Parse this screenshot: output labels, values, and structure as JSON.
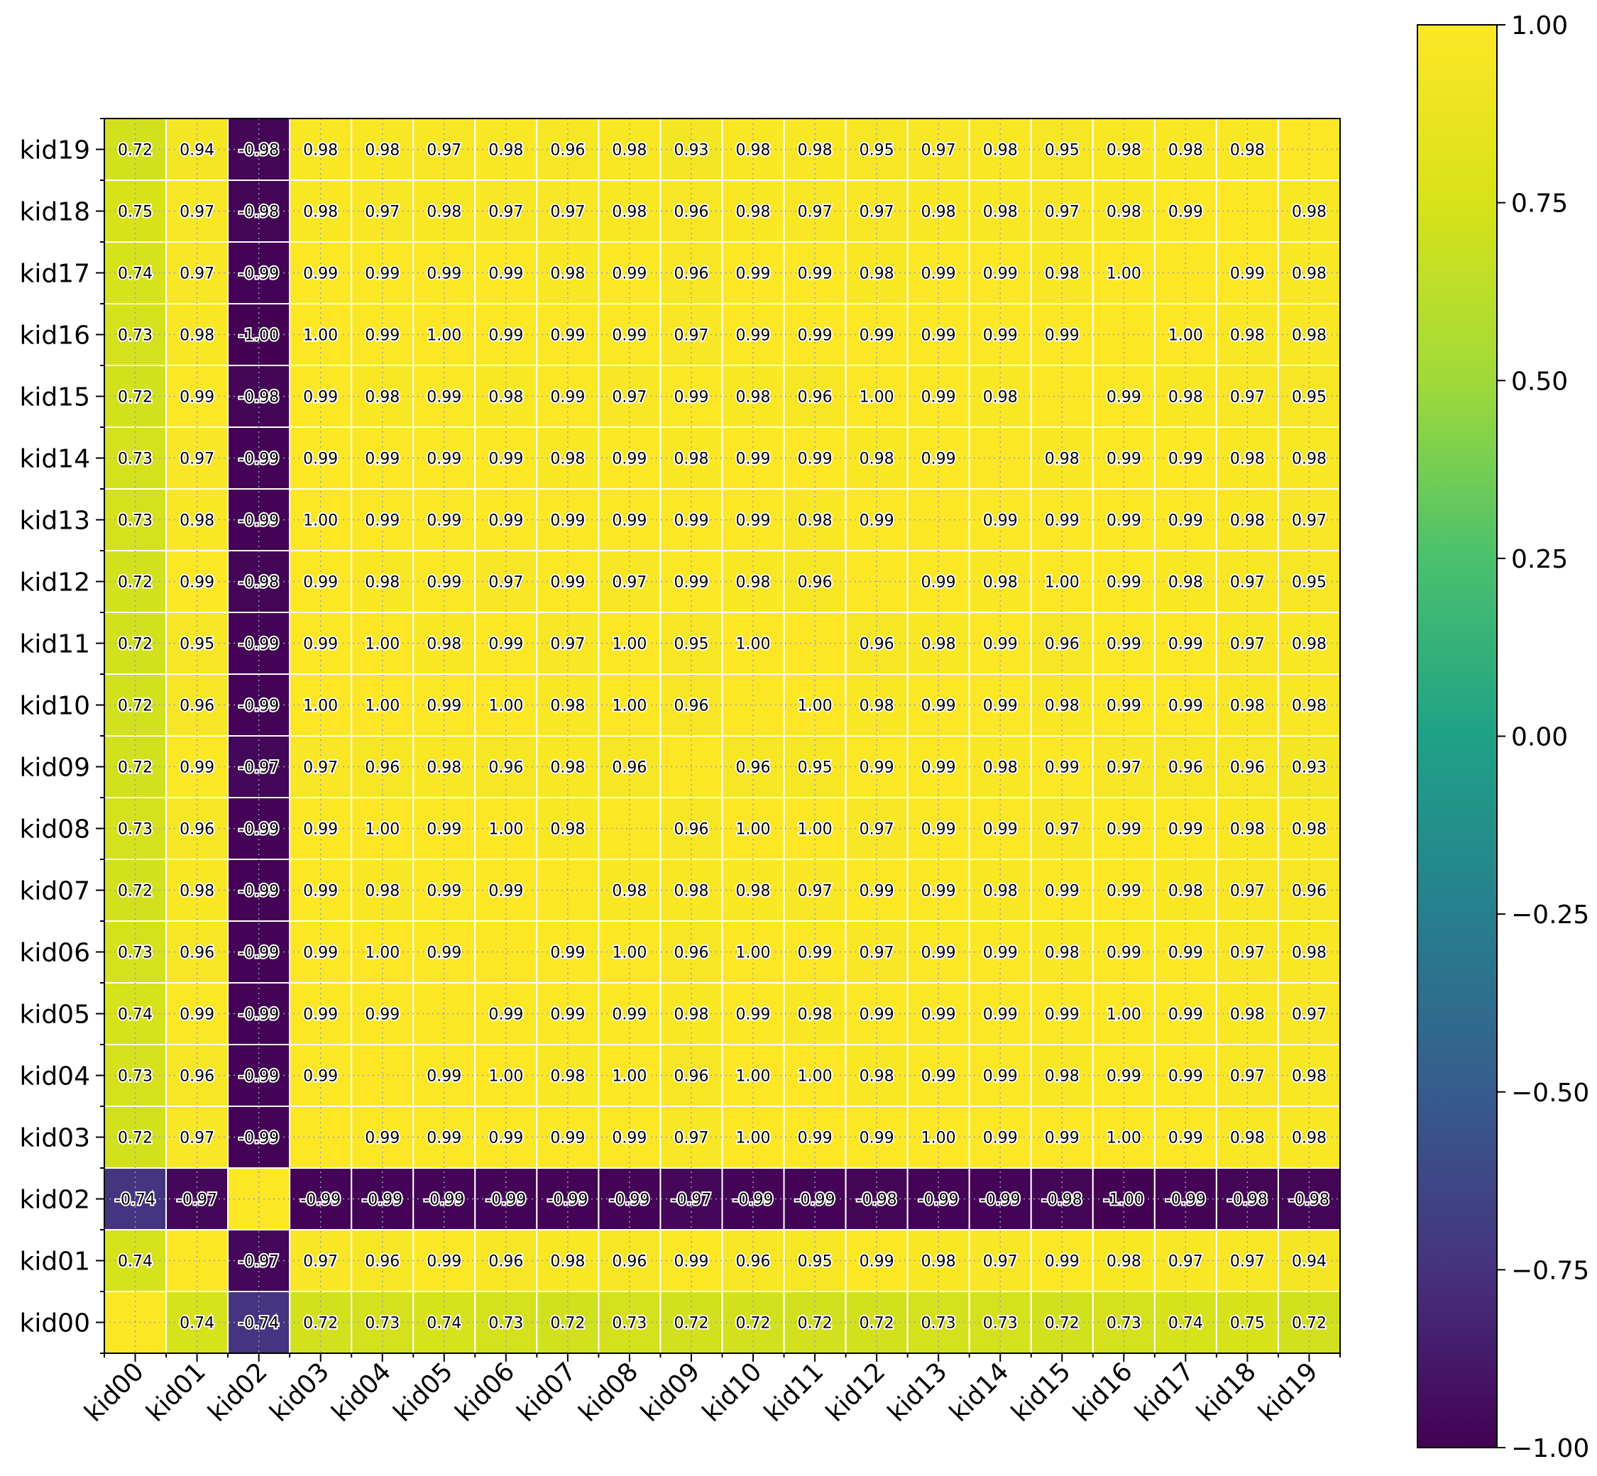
{
  "chart_data": {
    "type": "heatmap",
    "title": "",
    "xlabel": "",
    "ylabel": "",
    "x_categories": [
      "kid00",
      "kid01",
      "kid02",
      "kid03",
      "kid04",
      "kid05",
      "kid06",
      "kid07",
      "kid08",
      "kid09",
      "kid10",
      "kid11",
      "kid12",
      "kid13",
      "kid14",
      "kid15",
      "kid16",
      "kid17",
      "kid18",
      "kid19"
    ],
    "y_categories": [
      "kid00",
      "kid01",
      "kid02",
      "kid03",
      "kid04",
      "kid05",
      "kid06",
      "kid07",
      "kid08",
      "kid09",
      "kid10",
      "kid11",
      "kid12",
      "kid13",
      "kid14",
      "kid15",
      "kid16",
      "kid17",
      "kid18",
      "kid19"
    ],
    "matrix": [
      [
        1.0,
        0.74,
        -0.74,
        0.72,
        0.73,
        0.74,
        0.73,
        0.72,
        0.73,
        0.72,
        0.72,
        0.72,
        0.72,
        0.73,
        0.73,
        0.72,
        0.73,
        0.74,
        0.75,
        0.72
      ],
      [
        0.74,
        1.0,
        -0.97,
        0.97,
        0.96,
        0.99,
        0.96,
        0.98,
        0.96,
        0.99,
        0.96,
        0.95,
        0.99,
        0.98,
        0.97,
        0.99,
        0.98,
        0.97,
        0.97,
        0.94
      ],
      [
        -0.74,
        -0.97,
        1.0,
        -0.99,
        -0.99,
        -0.99,
        -0.99,
        -0.99,
        -0.99,
        -0.97,
        -0.99,
        -0.99,
        -0.98,
        -0.99,
        -0.99,
        -0.98,
        -1.0,
        -0.99,
        -0.98,
        -0.98
      ],
      [
        0.72,
        0.97,
        -0.99,
        1.0,
        0.99,
        0.99,
        0.99,
        0.99,
        0.99,
        0.97,
        1.0,
        0.99,
        0.99,
        1.0,
        0.99,
        0.99,
        1.0,
        0.99,
        0.98,
        0.98
      ],
      [
        0.73,
        0.96,
        -0.99,
        0.99,
        1.0,
        0.99,
        1.0,
        0.98,
        1.0,
        0.96,
        1.0,
        1.0,
        0.98,
        0.99,
        0.99,
        0.98,
        0.99,
        0.99,
        0.97,
        0.98
      ],
      [
        0.74,
        0.99,
        -0.99,
        0.99,
        0.99,
        1.0,
        0.99,
        0.99,
        0.99,
        0.98,
        0.99,
        0.98,
        0.99,
        0.99,
        0.99,
        0.99,
        1.0,
        0.99,
        0.98,
        0.97
      ],
      [
        0.73,
        0.96,
        -0.99,
        0.99,
        1.0,
        0.99,
        1.0,
        0.99,
        1.0,
        0.96,
        1.0,
        0.99,
        0.97,
        0.99,
        0.99,
        0.98,
        0.99,
        0.99,
        0.97,
        0.98
      ],
      [
        0.72,
        0.98,
        -0.99,
        0.99,
        0.98,
        0.99,
        0.99,
        1.0,
        0.98,
        0.98,
        0.98,
        0.97,
        0.99,
        0.99,
        0.98,
        0.99,
        0.99,
        0.98,
        0.97,
        0.96
      ],
      [
        0.73,
        0.96,
        -0.99,
        0.99,
        1.0,
        0.99,
        1.0,
        0.98,
        1.0,
        0.96,
        1.0,
        1.0,
        0.97,
        0.99,
        0.99,
        0.97,
        0.99,
        0.99,
        0.98,
        0.98
      ],
      [
        0.72,
        0.99,
        -0.97,
        0.97,
        0.96,
        0.98,
        0.96,
        0.98,
        0.96,
        1.0,
        0.96,
        0.95,
        0.99,
        0.99,
        0.98,
        0.99,
        0.97,
        0.96,
        0.96,
        0.93
      ],
      [
        0.72,
        0.96,
        -0.99,
        1.0,
        1.0,
        0.99,
        1.0,
        0.98,
        1.0,
        0.96,
        1.0,
        1.0,
        0.98,
        0.99,
        0.99,
        0.98,
        0.99,
        0.99,
        0.98,
        0.98
      ],
      [
        0.72,
        0.95,
        -0.99,
        0.99,
        1.0,
        0.98,
        0.99,
        0.97,
        1.0,
        0.95,
        1.0,
        1.0,
        0.96,
        0.98,
        0.99,
        0.96,
        0.99,
        0.99,
        0.97,
        0.98
      ],
      [
        0.72,
        0.99,
        -0.98,
        0.99,
        0.98,
        0.99,
        0.97,
        0.99,
        0.97,
        0.99,
        0.98,
        0.96,
        1.0,
        0.99,
        0.98,
        1.0,
        0.99,
        0.98,
        0.97,
        0.95
      ],
      [
        0.73,
        0.98,
        -0.99,
        1.0,
        0.99,
        0.99,
        0.99,
        0.99,
        0.99,
        0.99,
        0.99,
        0.98,
        0.99,
        1.0,
        0.99,
        0.99,
        0.99,
        0.99,
        0.98,
        0.97
      ],
      [
        0.73,
        0.97,
        -0.99,
        0.99,
        0.99,
        0.99,
        0.99,
        0.98,
        0.99,
        0.98,
        0.99,
        0.99,
        0.98,
        0.99,
        1.0,
        0.98,
        0.99,
        0.99,
        0.98,
        0.98
      ],
      [
        0.72,
        0.99,
        -0.98,
        0.99,
        0.98,
        0.99,
        0.98,
        0.99,
        0.97,
        0.99,
        0.98,
        0.96,
        1.0,
        0.99,
        0.98,
        1.0,
        0.99,
        0.98,
        0.97,
        0.95
      ],
      [
        0.73,
        0.98,
        -1.0,
        1.0,
        0.99,
        1.0,
        0.99,
        0.99,
        0.99,
        0.97,
        0.99,
        0.99,
        0.99,
        0.99,
        0.99,
        0.99,
        1.0,
        1.0,
        0.98,
        0.98
      ],
      [
        0.74,
        0.97,
        -0.99,
        0.99,
        0.99,
        0.99,
        0.99,
        0.98,
        0.99,
        0.96,
        0.99,
        0.99,
        0.98,
        0.99,
        0.99,
        0.98,
        1.0,
        1.0,
        0.99,
        0.98
      ],
      [
        0.75,
        0.97,
        -0.98,
        0.98,
        0.97,
        0.98,
        0.97,
        0.97,
        0.98,
        0.96,
        0.98,
        0.97,
        0.97,
        0.98,
        0.98,
        0.97,
        0.98,
        0.99,
        1.0,
        0.98
      ],
      [
        0.72,
        0.94,
        -0.98,
        0.98,
        0.98,
        0.97,
        0.98,
        0.96,
        0.98,
        0.93,
        0.98,
        0.98,
        0.95,
        0.97,
        0.98,
        0.95,
        0.98,
        0.98,
        0.98,
        1.0
      ]
    ],
    "diagonal_labels_shown": false,
    "value_format": "2 decimals",
    "colormap": "viridis",
    "vmin": -1.0,
    "vmax": 1.0,
    "colorbar": {
      "ticks": [
        "1.00",
        "0.75",
        "0.50",
        "0.25",
        "0.00",
        "−0.25",
        "−0.50",
        "−0.75",
        "−1.00"
      ],
      "tick_values": [
        1.0,
        0.75,
        0.5,
        0.25,
        0.0,
        -0.25,
        -0.5,
        -0.75,
        -1.0
      ],
      "placement": "right"
    },
    "grid": true,
    "origin": "lower"
  }
}
